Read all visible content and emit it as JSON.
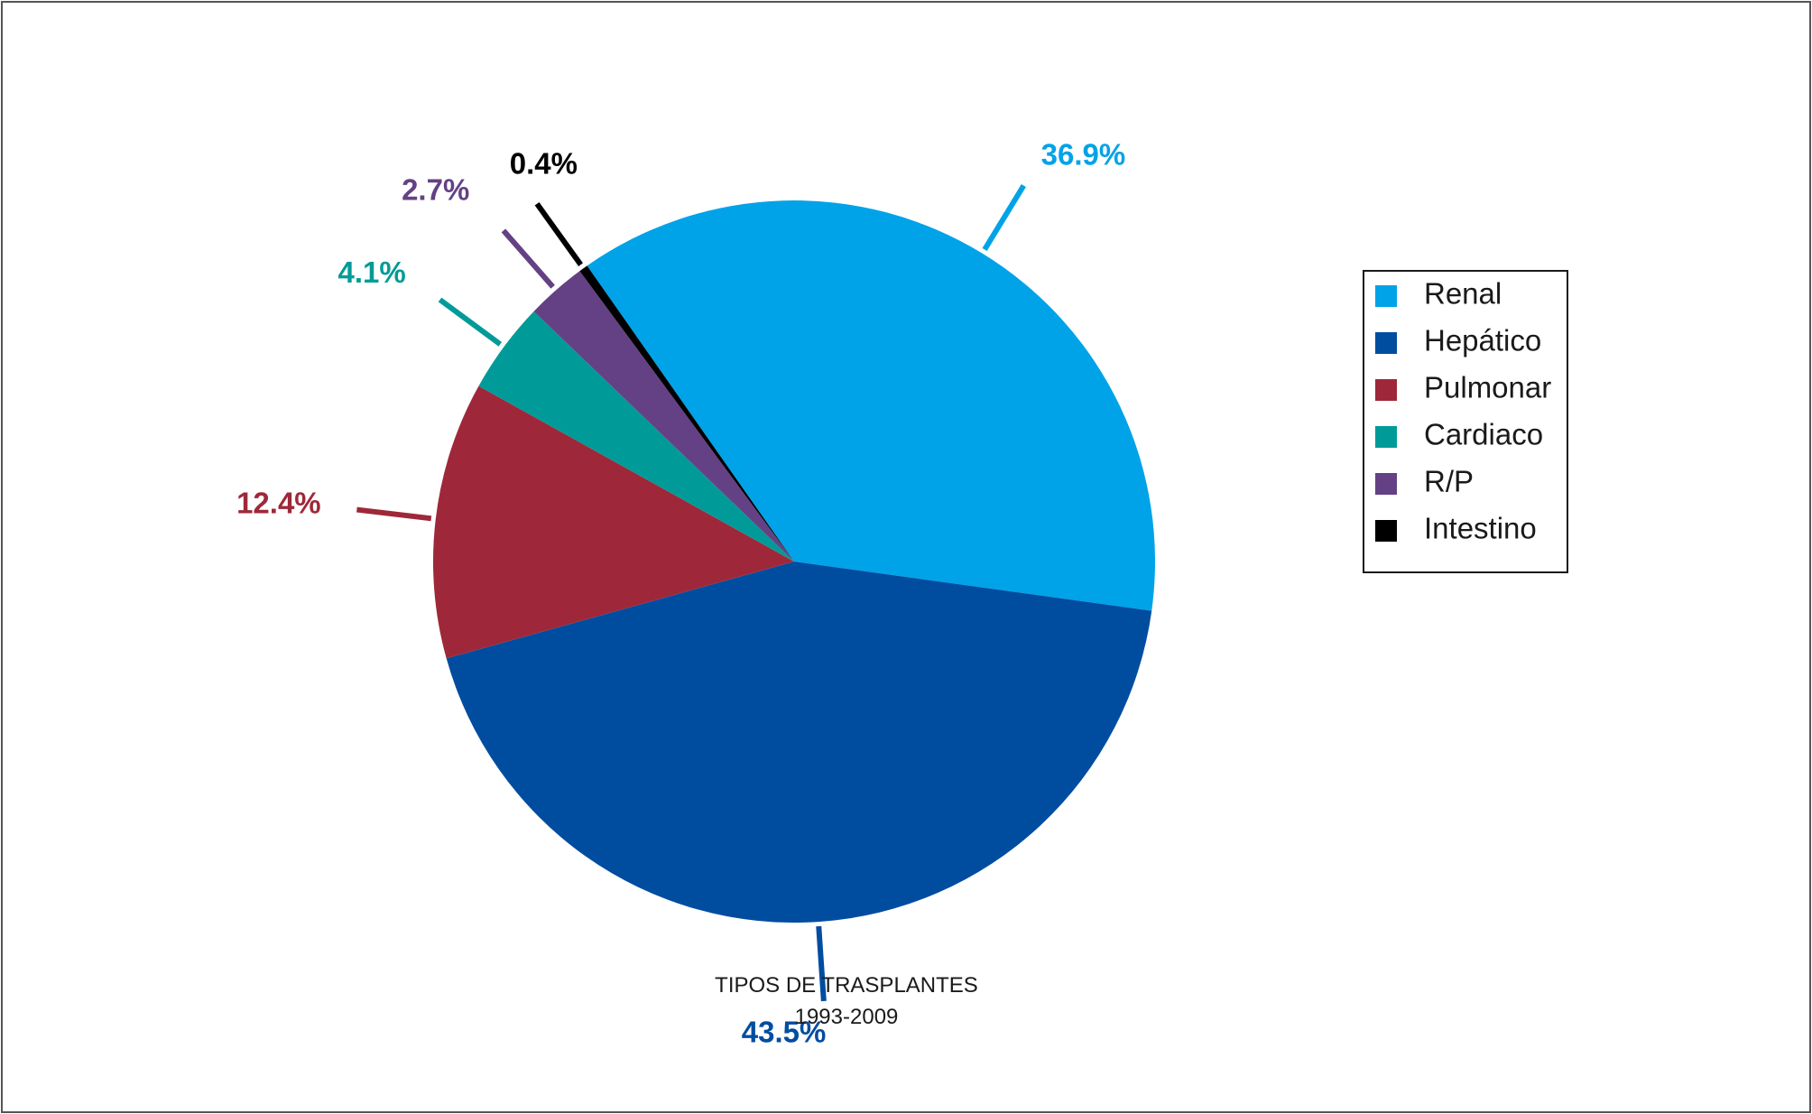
{
  "chart_data": {
    "type": "pie",
    "title": "TIPOS DE TRASPLANTES",
    "subtitle": "1993-2009",
    "unit": "%",
    "legend_position": "right",
    "slices": [
      {
        "name": "Renal",
        "value": 36.9,
        "label": "36.9%",
        "color": "#00a3e8"
      },
      {
        "name": "Hepático",
        "value": 43.5,
        "label": "43.5%",
        "color": "#004da0"
      },
      {
        "name": "Pulmonar",
        "value": 12.4,
        "label": "12.4%",
        "color": "#9e2839"
      },
      {
        "name": "Cardiaco",
        "value": 4.1,
        "label": "4.1%",
        "color": "#009b98"
      },
      {
        "name": "R/P",
        "value": 2.7,
        "label": "2.7%",
        "color": "#644184"
      },
      {
        "name": "Intestino",
        "value": 0.4,
        "label": "0.4%",
        "color": "#000000"
      }
    ]
  }
}
